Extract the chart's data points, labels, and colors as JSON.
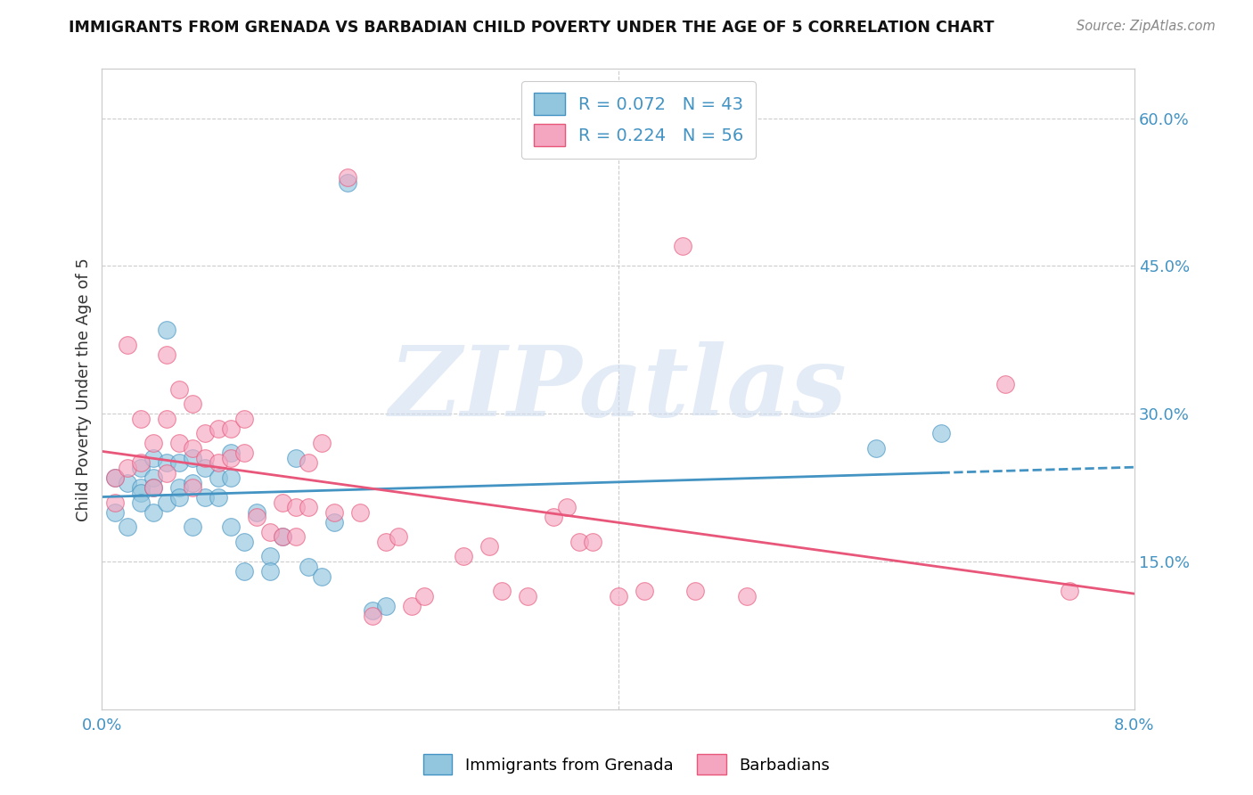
{
  "title": "IMMIGRANTS FROM GRENADA VS BARBADIAN CHILD POVERTY UNDER THE AGE OF 5 CORRELATION CHART",
  "source": "Source: ZipAtlas.com",
  "ylabel": "Child Poverty Under the Age of 5",
  "xlim": [
    0.0,
    0.08
  ],
  "ylim": [
    0.0,
    0.65
  ],
  "yticks_right": [
    0.15,
    0.3,
    0.45,
    0.6
  ],
  "ytick_right_labels": [
    "15.0%",
    "30.0%",
    "45.0%",
    "60.0%"
  ],
  "legend_label1": "Immigrants from Grenada",
  "legend_label2": "Barbadians",
  "color_blue": "#92c5de",
  "color_pink": "#f4a6c0",
  "color_line_blue": "#4393c3",
  "color_line_pink": "#e8567a",
  "watermark": "ZIPatlas",
  "watermark_color": "#d0dff0",
  "blue_x": [
    0.001,
    0.001,
    0.002,
    0.002,
    0.003,
    0.003,
    0.003,
    0.003,
    0.004,
    0.004,
    0.004,
    0.004,
    0.005,
    0.005,
    0.005,
    0.006,
    0.006,
    0.006,
    0.007,
    0.007,
    0.007,
    0.008,
    0.008,
    0.009,
    0.009,
    0.01,
    0.01,
    0.01,
    0.011,
    0.011,
    0.012,
    0.013,
    0.013,
    0.014,
    0.015,
    0.016,
    0.017,
    0.018,
    0.019,
    0.021,
    0.022,
    0.06,
    0.065
  ],
  "blue_y": [
    0.235,
    0.2,
    0.23,
    0.185,
    0.245,
    0.225,
    0.22,
    0.21,
    0.255,
    0.235,
    0.225,
    0.2,
    0.385,
    0.25,
    0.21,
    0.25,
    0.225,
    0.215,
    0.255,
    0.23,
    0.185,
    0.245,
    0.215,
    0.235,
    0.215,
    0.26,
    0.235,
    0.185,
    0.17,
    0.14,
    0.2,
    0.155,
    0.14,
    0.175,
    0.255,
    0.145,
    0.135,
    0.19,
    0.535,
    0.1,
    0.105,
    0.265,
    0.28
  ],
  "pink_x": [
    0.001,
    0.001,
    0.002,
    0.002,
    0.003,
    0.003,
    0.004,
    0.004,
    0.005,
    0.005,
    0.005,
    0.006,
    0.006,
    0.007,
    0.007,
    0.007,
    0.008,
    0.008,
    0.009,
    0.009,
    0.01,
    0.01,
    0.011,
    0.011,
    0.012,
    0.013,
    0.014,
    0.014,
    0.015,
    0.015,
    0.016,
    0.016,
    0.017,
    0.018,
    0.019,
    0.02,
    0.021,
    0.022,
    0.023,
    0.024,
    0.025,
    0.028,
    0.03,
    0.031,
    0.033,
    0.035,
    0.036,
    0.037,
    0.038,
    0.04,
    0.042,
    0.045,
    0.046,
    0.05,
    0.07,
    0.075
  ],
  "pink_y": [
    0.235,
    0.21,
    0.37,
    0.245,
    0.295,
    0.25,
    0.27,
    0.225,
    0.36,
    0.295,
    0.24,
    0.325,
    0.27,
    0.31,
    0.265,
    0.225,
    0.28,
    0.255,
    0.285,
    0.25,
    0.285,
    0.255,
    0.295,
    0.26,
    0.195,
    0.18,
    0.21,
    0.175,
    0.205,
    0.175,
    0.25,
    0.205,
    0.27,
    0.2,
    0.54,
    0.2,
    0.095,
    0.17,
    0.175,
    0.105,
    0.115,
    0.155,
    0.165,
    0.12,
    0.115,
    0.195,
    0.205,
    0.17,
    0.17,
    0.115,
    0.12,
    0.47,
    0.12,
    0.115,
    0.33,
    0.12
  ]
}
